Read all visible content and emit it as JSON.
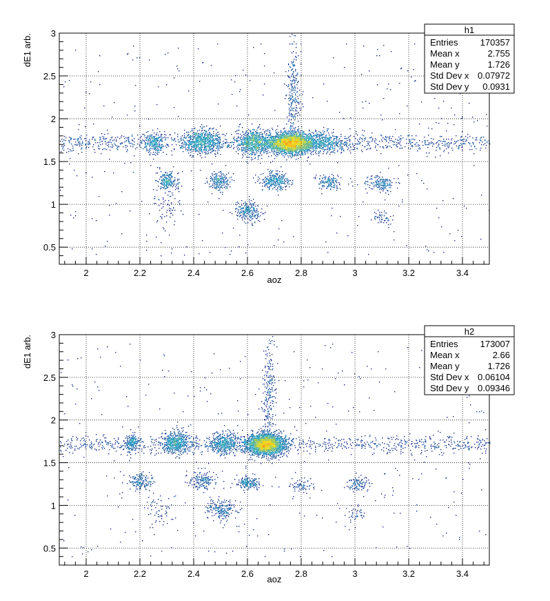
{
  "chart_data": [
    {
      "type": "heatmap",
      "xlabel": "aoz",
      "ylabel": "dE1 arb.",
      "xlim": [
        1.9,
        3.5
      ],
      "ylim": [
        0.3,
        3.0
      ],
      "xticks": [
        2,
        2.2,
        2.4,
        2.6,
        2.8,
        3,
        3.2,
        3.4
      ],
      "xtick_labels": [
        "2",
        "2.2",
        "2.4",
        "2.6",
        "2.8",
        "3",
        "3.2",
        "3.4"
      ],
      "yticks": [
        0.5,
        1,
        1.5,
        2,
        2.5,
        3
      ],
      "ytick_labels": [
        "0.5",
        "1",
        "1.5",
        "2",
        "2.5",
        "3"
      ],
      "grid": true,
      "colors": {
        "low": "#1a2a8c",
        "mid": "#2aa8c8",
        "high": "#f0e020",
        "peak": "#f5a020"
      },
      "stats": {
        "name": "h1",
        "rows": [
          {
            "label": "Entries",
            "value": "170357"
          },
          {
            "label": "Mean x",
            "value": "2.755"
          },
          {
            "label": "Mean y",
            "value": "1.726"
          },
          {
            "label": "Std Dev x",
            "value": "0.07972"
          },
          {
            "label": "Std Dev y",
            "value": "0.0931"
          }
        ]
      },
      "clusters": [
        {
          "x": 2.76,
          "y": 1.72,
          "sx": 0.045,
          "sy": 0.06,
          "n": 2600
        },
        {
          "x": 2.62,
          "y": 1.73,
          "sx": 0.03,
          "sy": 0.07,
          "n": 700
        },
        {
          "x": 2.43,
          "y": 1.74,
          "sx": 0.035,
          "sy": 0.07,
          "n": 650
        },
        {
          "x": 2.25,
          "y": 1.73,
          "sx": 0.02,
          "sy": 0.06,
          "n": 220
        },
        {
          "x": 2.88,
          "y": 1.73,
          "sx": 0.05,
          "sy": 0.06,
          "n": 400
        },
        {
          "x": 2.3,
          "y": 1.28,
          "sx": 0.02,
          "sy": 0.05,
          "n": 200
        },
        {
          "x": 2.49,
          "y": 1.28,
          "sx": 0.02,
          "sy": 0.05,
          "n": 200
        },
        {
          "x": 2.7,
          "y": 1.28,
          "sx": 0.025,
          "sy": 0.05,
          "n": 300
        },
        {
          "x": 2.9,
          "y": 1.26,
          "sx": 0.025,
          "sy": 0.04,
          "n": 140
        },
        {
          "x": 3.1,
          "y": 1.25,
          "sx": 0.025,
          "sy": 0.04,
          "n": 160
        },
        {
          "x": 2.6,
          "y": 0.92,
          "sx": 0.025,
          "sy": 0.06,
          "n": 220
        },
        {
          "x": 3.1,
          "y": 0.85,
          "sx": 0.02,
          "sy": 0.04,
          "n": 50
        },
        {
          "x": 2.77,
          "y": 2.3,
          "sx": 0.012,
          "sy": 0.3,
          "n": 260
        },
        {
          "x": 2.3,
          "y": 1.0,
          "sx": 0.03,
          "sy": 0.15,
          "n": 80
        }
      ],
      "band": {
        "y": 1.72,
        "sy": 0.05,
        "x_from": 1.9,
        "x_to": 3.5,
        "n": 1100
      }
    },
    {
      "type": "heatmap",
      "xlabel": "aoz",
      "ylabel": "dE1 arb.",
      "xlim": [
        1.9,
        3.5
      ],
      "ylim": [
        0.3,
        3.0
      ],
      "xticks": [
        2,
        2.2,
        2.4,
        2.6,
        2.8,
        3,
        3.2,
        3.4
      ],
      "xtick_labels": [
        "2",
        "2.2",
        "2.4",
        "2.6",
        "2.8",
        "3",
        "3.2",
        "3.4"
      ],
      "yticks": [
        0.5,
        1,
        1.5,
        2,
        2.5,
        3
      ],
      "ytick_labels": [
        "0.5",
        "1",
        "1.5",
        "2",
        "2.5",
        "3"
      ],
      "grid": true,
      "colors": {
        "low": "#1a2a8c",
        "mid": "#2aa8c8",
        "high": "#f0e020",
        "peak": "#f5a020"
      },
      "stats": {
        "name": "h2",
        "rows": [
          {
            "label": "Entries",
            "value": "173007"
          },
          {
            "label": "Mean x",
            "value": "2.66"
          },
          {
            "label": "Mean y",
            "value": "1.726"
          },
          {
            "label": "Std Dev x",
            "value": "0.06104"
          },
          {
            "label": "Std Dev y",
            "value": "0.09346"
          }
        ]
      },
      "clusters": [
        {
          "x": 2.665,
          "y": 1.72,
          "sx": 0.035,
          "sy": 0.06,
          "n": 2600
        },
        {
          "x": 2.335,
          "y": 1.74,
          "sx": 0.025,
          "sy": 0.06,
          "n": 550
        },
        {
          "x": 2.51,
          "y": 1.73,
          "sx": 0.025,
          "sy": 0.06,
          "n": 420
        },
        {
          "x": 2.17,
          "y": 1.74,
          "sx": 0.015,
          "sy": 0.05,
          "n": 180
        },
        {
          "x": 2.2,
          "y": 1.28,
          "sx": 0.02,
          "sy": 0.05,
          "n": 160
        },
        {
          "x": 2.43,
          "y": 1.29,
          "sx": 0.025,
          "sy": 0.05,
          "n": 170
        },
        {
          "x": 2.6,
          "y": 1.27,
          "sx": 0.02,
          "sy": 0.04,
          "n": 180
        },
        {
          "x": 2.8,
          "y": 1.24,
          "sx": 0.02,
          "sy": 0.04,
          "n": 70
        },
        {
          "x": 3.01,
          "y": 1.25,
          "sx": 0.02,
          "sy": 0.04,
          "n": 100
        },
        {
          "x": 2.5,
          "y": 0.95,
          "sx": 0.025,
          "sy": 0.06,
          "n": 200
        },
        {
          "x": 2.27,
          "y": 0.95,
          "sx": 0.03,
          "sy": 0.1,
          "n": 60
        },
        {
          "x": 2.68,
          "y": 2.3,
          "sx": 0.012,
          "sy": 0.3,
          "n": 240
        },
        {
          "x": 3.0,
          "y": 0.9,
          "sx": 0.02,
          "sy": 0.05,
          "n": 40
        }
      ],
      "band": {
        "y": 1.72,
        "sy": 0.05,
        "x_from": 1.9,
        "x_to": 3.5,
        "n": 900
      }
    }
  ]
}
